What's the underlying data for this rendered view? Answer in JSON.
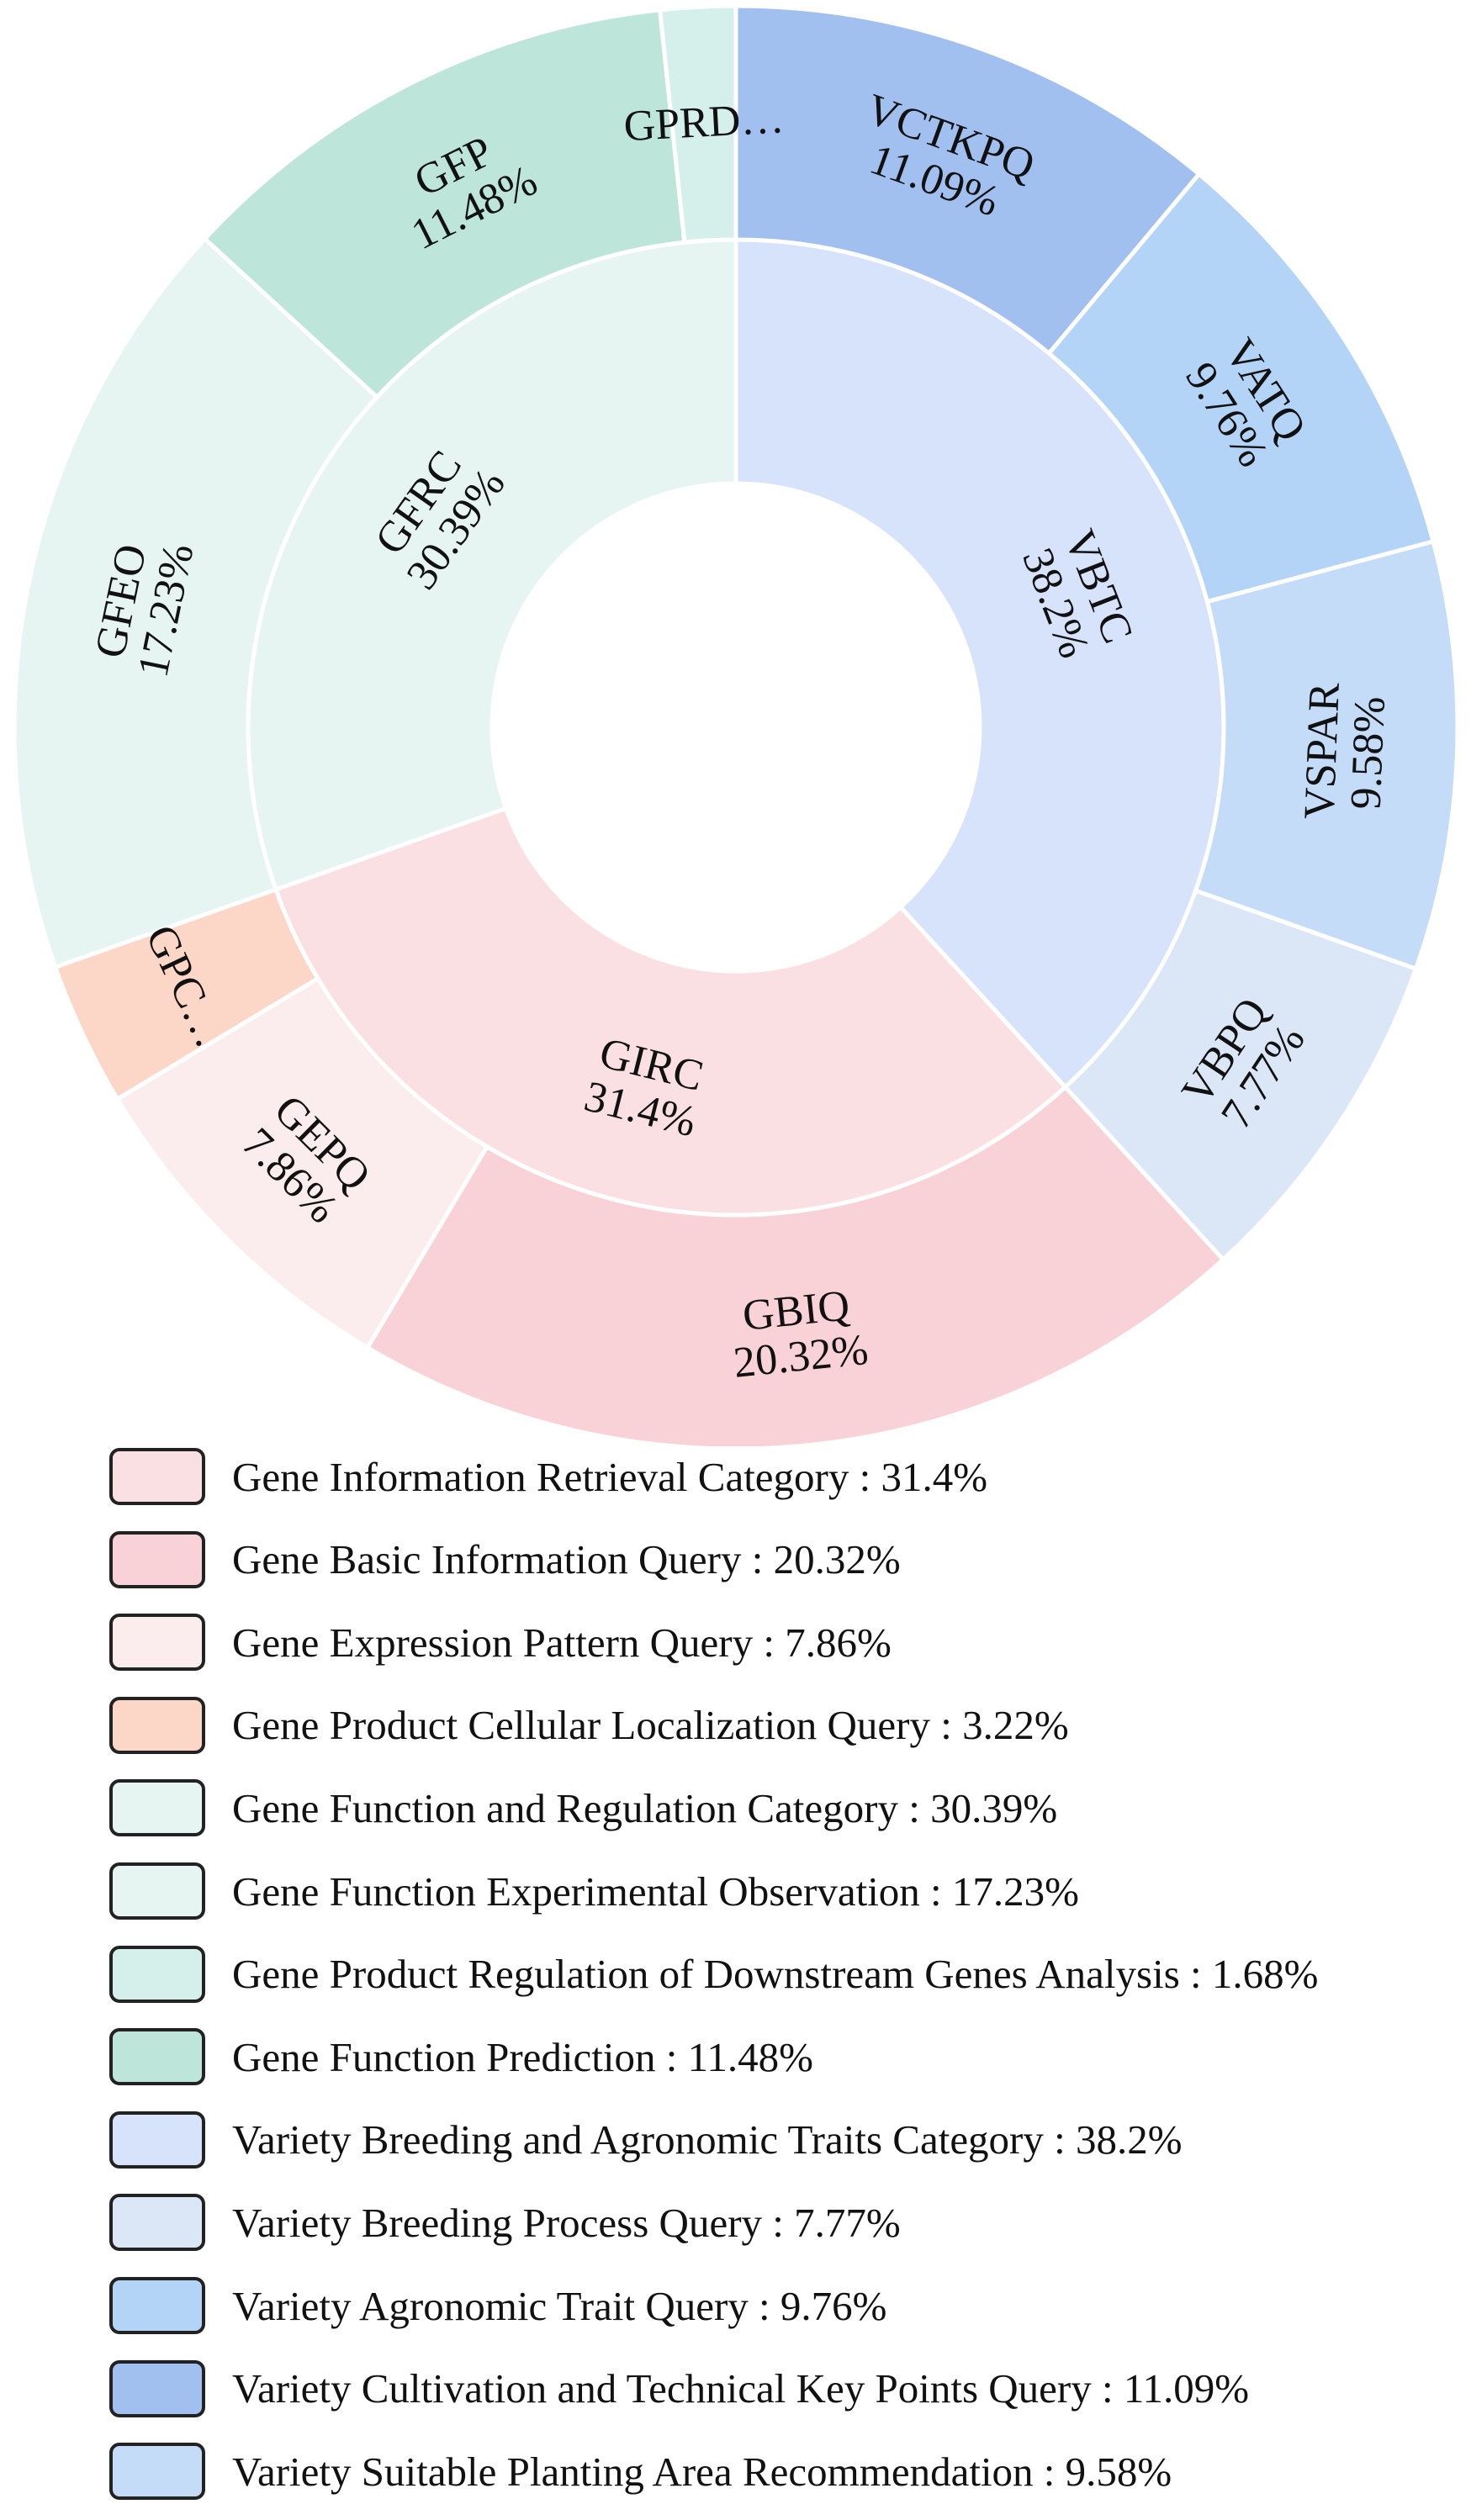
{
  "chart_data": {
    "type": "pie",
    "subtype": "sunburst",
    "inner": [
      {
        "code": "VBTC",
        "name": "Variety Breeding and Agronomic Traits Category",
        "value": 38.2,
        "label": "38.2%",
        "color": "#d6e3fa"
      },
      {
        "code": "GIRC",
        "name": "Gene Information Retrieval Category",
        "value": 31.4,
        "label": "31.4%",
        "color": "#fbe0e3"
      },
      {
        "code": "GFRC",
        "name": "Gene Function and Regulation Category",
        "value": 30.39,
        "label": "30.39%",
        "color": "#e6f5f1"
      }
    ],
    "outer": [
      {
        "code": "VCTKPQ",
        "name": "Variety Cultivation and Technical Key Points Query",
        "value": 11.09,
        "label": "11.09%",
        "color": "#a1c0ef"
      },
      {
        "code": "VATQ",
        "name": "Variety Agronomic Trait Query",
        "value": 9.76,
        "label": "9.76%",
        "color": "#b3d3f7"
      },
      {
        "code": "VSPAR",
        "name": "Variety Suitable Planting Area Recommendation",
        "value": 9.58,
        "label": "9.58%",
        "color": "#c4dcf8"
      },
      {
        "code": "VBPQ",
        "name": "Variety Breeding Process Query",
        "value": 7.77,
        "label": "7.77%",
        "color": "#dbe7f6"
      },
      {
        "code": "GBIQ",
        "name": "Gene Basic Information Query",
        "value": 20.32,
        "label": "20.32%",
        "color": "#f9d2d8"
      },
      {
        "code": "GEPQ",
        "name": "Gene Expression Pattern Query",
        "value": 7.86,
        "label": "7.86%",
        "color": "#fbeced"
      },
      {
        "code": "GPC…",
        "name": "Gene Product Cellular Localization Query",
        "value": 3.22,
        "label": "",
        "color": "#fcd6c7"
      },
      {
        "code": "GFEO",
        "name": "Gene Function Experimental Observation",
        "value": 17.23,
        "label": "17.23%",
        "color": "#e6f5f2"
      },
      {
        "code": "GFP",
        "name": "Gene Function Prediction",
        "value": 11.48,
        "label": "11.48%",
        "color": "#bde5d9"
      },
      {
        "code": "GPRD…",
        "name": "Gene Product Regulation of Downstream Genes Analysis",
        "value": 1.68,
        "label": "",
        "color": "#d5f0ea"
      }
    ],
    "legend": [
      {
        "text": "Gene Information Retrieval Category : 31.4%",
        "color": "#fbe0e3"
      },
      {
        "text": "Gene Basic Information Query : 20.32%",
        "color": "#f9d2d8"
      },
      {
        "text": "Gene Expression Pattern Query : 7.86%",
        "color": "#fbeced"
      },
      {
        "text": "Gene Product Cellular Localization Query : 3.22%",
        "color": "#fcd6c7"
      },
      {
        "text": "Gene Function and Regulation Category : 30.39%",
        "color": "#e6f5f1"
      },
      {
        "text": "Gene Function Experimental Observation : 17.23%",
        "color": "#e6f5f2"
      },
      {
        "text": "Gene Product Regulation of Downstream Genes Analysis : 1.68%",
        "color": "#d5f0ea"
      },
      {
        "text": "Gene Function Prediction : 11.48%",
        "color": "#bde5d9"
      },
      {
        "text": "Variety Breeding and Agronomic Traits Category : 38.2%",
        "color": "#d6e3fa"
      },
      {
        "text": "Variety Breeding Process Query : 7.77%",
        "color": "#dbe7f6"
      },
      {
        "text": "Variety Agronomic Trait Query : 9.76%",
        "color": "#b3d3f7"
      },
      {
        "text": "Variety Cultivation and Technical Key Points Query : 11.09%",
        "color": "#a1c0ef"
      },
      {
        "text": "Variety Suitable Planting Area Recommendation : 9.58%",
        "color": "#c4dcf8"
      }
    ],
    "legend_placement": "bottom"
  }
}
